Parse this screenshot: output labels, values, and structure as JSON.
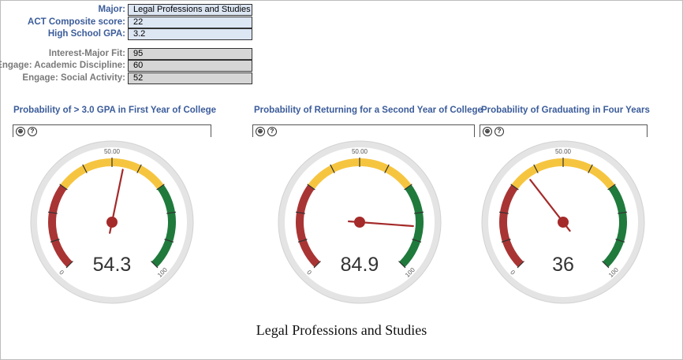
{
  "form": {
    "major_label": "Major:",
    "major_value": "Legal Professions and Studies",
    "act_label": "ACT Composite score:",
    "act_value": "22",
    "gpa_label": "High School GPA:",
    "gpa_value": "3.2",
    "interest_label": "Interest-Major Fit:",
    "interest_value": "95",
    "academic_label": "Engage: Academic Discipline:",
    "academic_value": "60",
    "social_label": "Engage: Social Activity:",
    "social_value": "52"
  },
  "gauges": [
    {
      "title": "Probability of > 3.0 GPA in First Year of College",
      "value": 54.3,
      "display": "54.3",
      "min_label": "0",
      "mid_label": "50.00",
      "max_label": "100"
    },
    {
      "title": "Probability of Returning for a Second Year of College",
      "value": 84.9,
      "display": "84.9",
      "min_label": "0",
      "mid_label": "50.00",
      "max_label": "100"
    },
    {
      "title": "Probability of Graduating in Four Years",
      "value": 36,
      "display": "36",
      "min_label": "0",
      "mid_label": "50.00",
      "max_label": "100"
    }
  ],
  "controls": {
    "zoom_icon": "⊕",
    "help_icon": "?"
  },
  "colors": {
    "red": "#a93434",
    "yellow": "#f6c540",
    "green": "#1f7a3c",
    "needle": "#a52a2a",
    "title": "#3b5c9a"
  },
  "footer": "Legal Professions and Studies"
}
